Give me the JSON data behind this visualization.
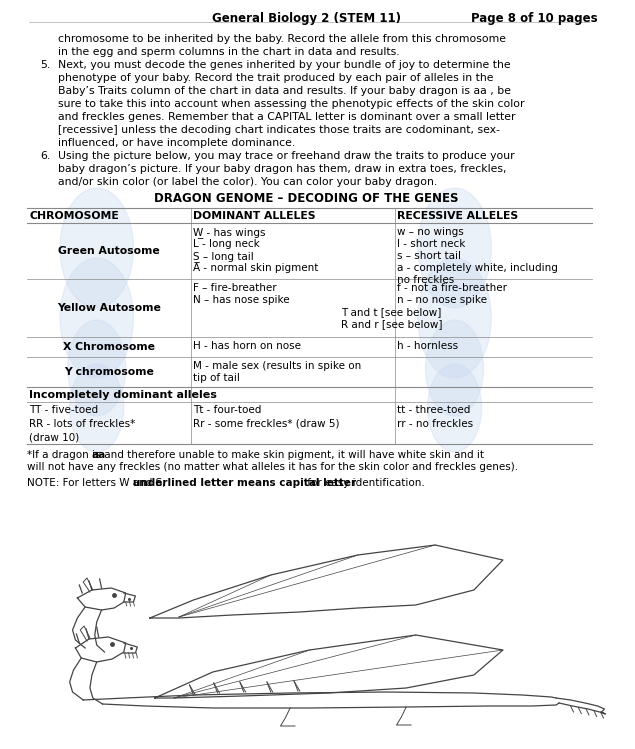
{
  "title_left": "General Biology 2 (STEM 11)",
  "title_right": "Page 8 of 10 pages",
  "bg_color": "#ffffff",
  "text_color": "#000000",
  "body_text_intro": [
    "chromosome to be inherited by the baby. Record the allele from this chromosome",
    "in the egg and sperm columns in the chart in data and results."
  ],
  "item5_lines": [
    "Next, you must decode the genes inherited by your bundle of joy to determine the",
    "phenotype of your baby. Record the trait produced by each pair of alleles in the",
    "Baby’s Traits column of the chart in data and results. If your baby dragon is aa , be",
    "sure to take this into account when assessing the phenotypic effects of the skin color",
    "and freckles genes. Remember that a CAPITAL letter is dominant over a small letter",
    "[recessive] unless the decoding chart indicates those traits are codominant, sex-",
    "influenced, or have incomplete dominance."
  ],
  "item6_lines": [
    "Using the picture below, you may trace or freehand draw the traits to produce your",
    "baby dragon’s picture. If your baby dragon has them, draw in extra toes, freckles,",
    "and/or skin color (or label the color). You can color your baby dragon."
  ],
  "table_title": "DRAGON GENOME – DECODING OF THE GENES",
  "table_headers": [
    "CHROMOSOME",
    "DOMINANT ALLELES",
    "RECESSIVE ALLELES"
  ],
  "table_rows": [
    {
      "chromosome": "Green Autosome",
      "dominant": [
        "W̲ - has wings",
        "L - long neck",
        "S̲ – long tail",
        "A - normal skin pigment"
      ],
      "recessive": [
        "w – no wings",
        "l - short neck",
        "s – short tail",
        "a - completely white, including\nno freckles"
      ]
    },
    {
      "chromosome": "Yellow Autosome",
      "dominant": [
        "F – fire-breather",
        "N – has nose spike",
        "T and t [see below]",
        "R and r [see below]"
      ],
      "recessive": [
        "f - not a fire-breather",
        "n – no nose spike",
        "",
        ""
      ]
    },
    {
      "chromosome": "X Chromosome",
      "dominant": [
        "H - has horn on nose"
      ],
      "recessive": [
        "h - hornless"
      ]
    },
    {
      "chromosome": "Y chromosome",
      "dominant": [
        "M - male sex (results in spike on\ntip of tail"
      ],
      "recessive": [
        ""
      ]
    }
  ],
  "incomplete_header": "Incompletely dominant alleles",
  "incomplete_rows": [
    [
      "TT - five-toed",
      "Tt - four-toed",
      "tt - three-toed"
    ],
    [
      "RR - lots of freckles*",
      "Rr - some freckles* (draw 5)",
      "rr - no freckles"
    ],
    [
      "(draw 10)",
      "",
      ""
    ]
  ],
  "footnote1_pre": "*If a dragon is ",
  "footnote1_bold": "aa",
  "footnote1_post": " and therefore unable to make skin pigment, it will have white skin and it",
  "footnote2": "will not have any freckles (no matter what alleles it has for the skin color and freckles genes).",
  "note_pre": "NOTE: For letters W and S, ",
  "note_bold": "underlined letter means capital letter",
  "note_post": " for easy identification.",
  "watermark_color": "#c8d8f0",
  "table_border_color": "#888888"
}
